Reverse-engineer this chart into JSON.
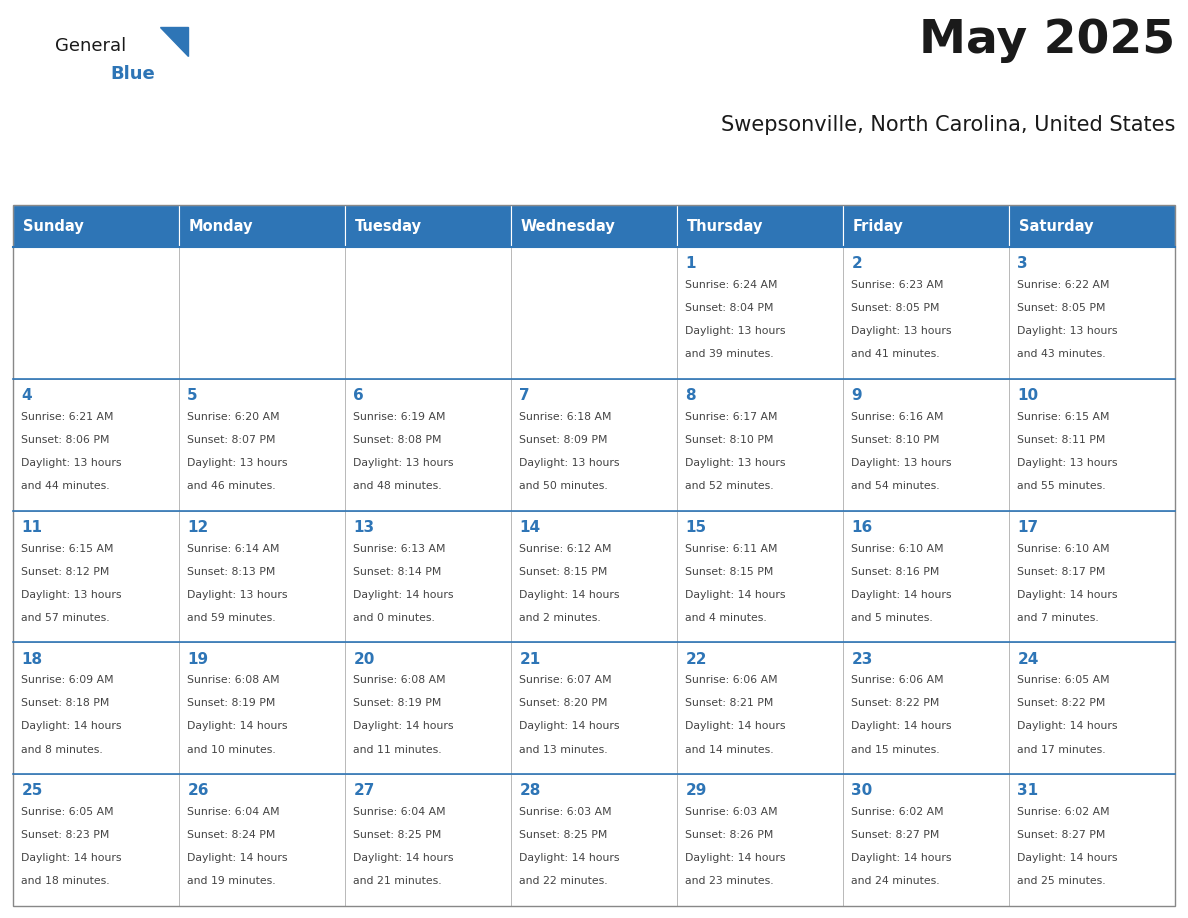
{
  "title": "May 2025",
  "subtitle": "Swepsonville, North Carolina, United States",
  "header_bg": "#2E75B6",
  "header_text_color": "#FFFFFF",
  "day_number_color": "#2E75B6",
  "text_color": "#444444",
  "grid_color": "#AAAAAA",
  "days_of_week": [
    "Sunday",
    "Monday",
    "Tuesday",
    "Wednesday",
    "Thursday",
    "Friday",
    "Saturday"
  ],
  "weeks": [
    [
      {
        "day": "",
        "info": ""
      },
      {
        "day": "",
        "info": ""
      },
      {
        "day": "",
        "info": ""
      },
      {
        "day": "",
        "info": ""
      },
      {
        "day": "1",
        "info": "Sunrise: 6:24 AM\nSunset: 8:04 PM\nDaylight: 13 hours\nand 39 minutes."
      },
      {
        "day": "2",
        "info": "Sunrise: 6:23 AM\nSunset: 8:05 PM\nDaylight: 13 hours\nand 41 minutes."
      },
      {
        "day": "3",
        "info": "Sunrise: 6:22 AM\nSunset: 8:05 PM\nDaylight: 13 hours\nand 43 minutes."
      }
    ],
    [
      {
        "day": "4",
        "info": "Sunrise: 6:21 AM\nSunset: 8:06 PM\nDaylight: 13 hours\nand 44 minutes."
      },
      {
        "day": "5",
        "info": "Sunrise: 6:20 AM\nSunset: 8:07 PM\nDaylight: 13 hours\nand 46 minutes."
      },
      {
        "day": "6",
        "info": "Sunrise: 6:19 AM\nSunset: 8:08 PM\nDaylight: 13 hours\nand 48 minutes."
      },
      {
        "day": "7",
        "info": "Sunrise: 6:18 AM\nSunset: 8:09 PM\nDaylight: 13 hours\nand 50 minutes."
      },
      {
        "day": "8",
        "info": "Sunrise: 6:17 AM\nSunset: 8:10 PM\nDaylight: 13 hours\nand 52 minutes."
      },
      {
        "day": "9",
        "info": "Sunrise: 6:16 AM\nSunset: 8:10 PM\nDaylight: 13 hours\nand 54 minutes."
      },
      {
        "day": "10",
        "info": "Sunrise: 6:15 AM\nSunset: 8:11 PM\nDaylight: 13 hours\nand 55 minutes."
      }
    ],
    [
      {
        "day": "11",
        "info": "Sunrise: 6:15 AM\nSunset: 8:12 PM\nDaylight: 13 hours\nand 57 minutes."
      },
      {
        "day": "12",
        "info": "Sunrise: 6:14 AM\nSunset: 8:13 PM\nDaylight: 13 hours\nand 59 minutes."
      },
      {
        "day": "13",
        "info": "Sunrise: 6:13 AM\nSunset: 8:14 PM\nDaylight: 14 hours\nand 0 minutes."
      },
      {
        "day": "14",
        "info": "Sunrise: 6:12 AM\nSunset: 8:15 PM\nDaylight: 14 hours\nand 2 minutes."
      },
      {
        "day": "15",
        "info": "Sunrise: 6:11 AM\nSunset: 8:15 PM\nDaylight: 14 hours\nand 4 minutes."
      },
      {
        "day": "16",
        "info": "Sunrise: 6:10 AM\nSunset: 8:16 PM\nDaylight: 14 hours\nand 5 minutes."
      },
      {
        "day": "17",
        "info": "Sunrise: 6:10 AM\nSunset: 8:17 PM\nDaylight: 14 hours\nand 7 minutes."
      }
    ],
    [
      {
        "day": "18",
        "info": "Sunrise: 6:09 AM\nSunset: 8:18 PM\nDaylight: 14 hours\nand 8 minutes."
      },
      {
        "day": "19",
        "info": "Sunrise: 6:08 AM\nSunset: 8:19 PM\nDaylight: 14 hours\nand 10 minutes."
      },
      {
        "day": "20",
        "info": "Sunrise: 6:08 AM\nSunset: 8:19 PM\nDaylight: 14 hours\nand 11 minutes."
      },
      {
        "day": "21",
        "info": "Sunrise: 6:07 AM\nSunset: 8:20 PM\nDaylight: 14 hours\nand 13 minutes."
      },
      {
        "day": "22",
        "info": "Sunrise: 6:06 AM\nSunset: 8:21 PM\nDaylight: 14 hours\nand 14 minutes."
      },
      {
        "day": "23",
        "info": "Sunrise: 6:06 AM\nSunset: 8:22 PM\nDaylight: 14 hours\nand 15 minutes."
      },
      {
        "day": "24",
        "info": "Sunrise: 6:05 AM\nSunset: 8:22 PM\nDaylight: 14 hours\nand 17 minutes."
      }
    ],
    [
      {
        "day": "25",
        "info": "Sunrise: 6:05 AM\nSunset: 8:23 PM\nDaylight: 14 hours\nand 18 minutes."
      },
      {
        "day": "26",
        "info": "Sunrise: 6:04 AM\nSunset: 8:24 PM\nDaylight: 14 hours\nand 19 minutes."
      },
      {
        "day": "27",
        "info": "Sunrise: 6:04 AM\nSunset: 8:25 PM\nDaylight: 14 hours\nand 21 minutes."
      },
      {
        "day": "28",
        "info": "Sunrise: 6:03 AM\nSunset: 8:25 PM\nDaylight: 14 hours\nand 22 minutes."
      },
      {
        "day": "29",
        "info": "Sunrise: 6:03 AM\nSunset: 8:26 PM\nDaylight: 14 hours\nand 23 minutes."
      },
      {
        "day": "30",
        "info": "Sunrise: 6:02 AM\nSunset: 8:27 PM\nDaylight: 14 hours\nand 24 minutes."
      },
      {
        "day": "31",
        "info": "Sunrise: 6:02 AM\nSunset: 8:27 PM\nDaylight: 14 hours\nand 25 minutes."
      }
    ]
  ]
}
